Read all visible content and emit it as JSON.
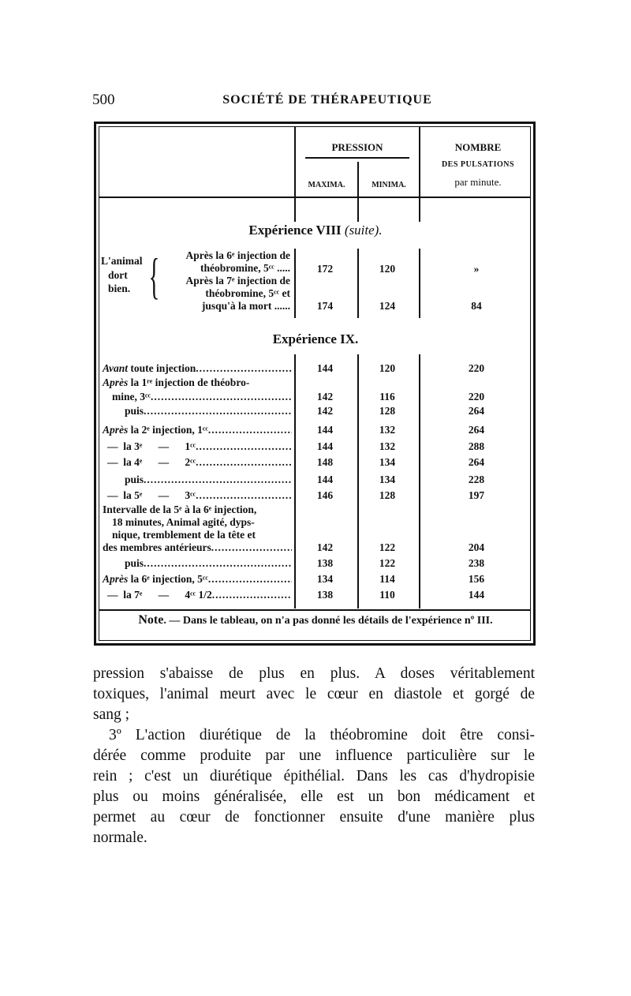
{
  "header": {
    "page_number": "500",
    "running_title": "SOCIÉTÉ DE THÉRAPEUTIQUE"
  },
  "table": {
    "columns": {
      "pression": "PRESSION",
      "maxima": "MAXIMA.",
      "minima": "MINIMA.",
      "pulsations_1": "NOMBRE",
      "pulsations_2": "DES PULSATIONS",
      "pulsations_3": "par minute."
    },
    "exp8": {
      "title": "Expérience VIII",
      "title_suffix": "(suite).",
      "group_label": [
        "L'animal",
        "dort",
        "bien."
      ],
      "rows": [
        {
          "lines": [
            "Après la 6ᵉ injection de",
            "théobromine, 5ᶜᶜ ....."
          ],
          "maxima": "172",
          "minima": "120",
          "pulsations": "»"
        },
        {
          "lines": [
            "Après la 7ᵉ injection de",
            "théobromine, 5ᶜᶜ et",
            "jusqu'à la mort ......"
          ],
          "maxima": "174",
          "minima": "124",
          "pulsations": "84"
        }
      ]
    },
    "exp9": {
      "title": "Expérience IX.",
      "rows": [
        {
          "italic": "Avant",
          "text": " toute injection",
          "maxima": "144",
          "minima": "120",
          "pulsations": "220"
        },
        {
          "italic": "Après",
          "text": " la 1ʳᵉ injection de théobro-",
          "text2": "mine, 3ᶜᶜ",
          "maxima": "142",
          "minima": "116",
          "pulsations": "220"
        },
        {
          "text": "puis",
          "maxima": "142",
          "minima": "128",
          "pulsations": "264"
        },
        {
          "italic": "Après",
          "text": " la 2ᵉ injection, 1ᶜᶜ",
          "maxima": "144",
          "minima": "132",
          "pulsations": "264"
        },
        {
          "text": "—  la 3ᵉ      —      1ᶜᶜ",
          "maxima": "144",
          "minima": "132",
          "pulsations": "288"
        },
        {
          "text": "—  la 4ᵉ      —      2ᶜᶜ",
          "maxima": "148",
          "minima": "134",
          "pulsations": "264"
        },
        {
          "text": "puis",
          "maxima": "144",
          "minima": "134",
          "pulsations": "228"
        },
        {
          "text": "—  la 5ᵉ      —      3ᶜᶜ",
          "maxima": "146",
          "minima": "128",
          "pulsations": "197"
        },
        {
          "lines": [
            "Intervalle de la 5ᵉ à la 6ᵉ injection,",
            "18 minutes, Animal agité, dyps-",
            "nique, tremblement de la tête et"
          ],
          "text": "des membres antérieurs",
          "maxima": "142",
          "minima": "122",
          "pulsations": "204"
        },
        {
          "text": "puis",
          "maxima": "138",
          "minima": "122",
          "pulsations": "238"
        },
        {
          "italic": "Après",
          "text": " la 6ᵉ injection, 5ᶜᶜ",
          "maxima": "134",
          "minima": "114",
          "pulsations": "156"
        },
        {
          "text": "—  la 7ᵉ      —      4ᶜᶜ 1/2",
          "maxima": "138",
          "minima": "110",
          "pulsations": "144"
        }
      ]
    },
    "note": {
      "label": "Note",
      "text": ". — Dans le tableau, on n'a pas donné les détails de l'expérience nº III."
    }
  },
  "body": {
    "lines": [
      "pression s'abaisse de plus en plus. A doses véritablement",
      "toxiques, l'animal meurt avec le cœur en diastole et gorgé de",
      "sang ;",
      "3º L'action diurétique de la théobromine doit être consi-",
      "dérée comme produite par une influence particulière sur le",
      "rein ; c'est un diurétique épithélial. Dans les cas d'hydropisie",
      "plus ou moins généralisée, elle est un bon médicament et",
      "permet au cœur de fonctionner ensuite d'une manière plus",
      "normale."
    ]
  }
}
